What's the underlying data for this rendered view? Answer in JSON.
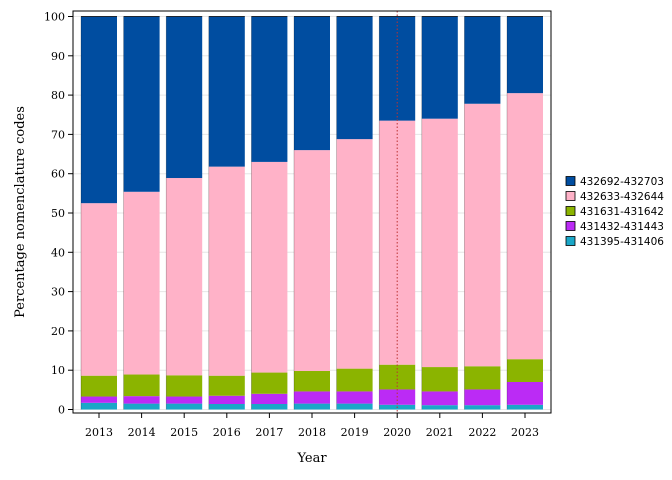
{
  "chart_data": {
    "type": "bar",
    "stacked": true,
    "title": "",
    "xlabel": "Year",
    "ylabel": "Percentage nomenclature codes",
    "ylim": [
      0,
      100
    ],
    "yticks": [
      "0",
      "10",
      "20",
      "30",
      "40",
      "50",
      "60",
      "70",
      "80",
      "90",
      "100"
    ],
    "grid": "horizontal",
    "legend_position": "right",
    "reference_line_category": "2020",
    "categories": [
      "2013",
      "2014",
      "2015",
      "2016",
      "2017",
      "2018",
      "2019",
      "2020",
      "2021",
      "2022",
      "2023"
    ],
    "series": [
      {
        "name": "431395-431406",
        "color": "#1aa7c8",
        "values": [
          1.7,
          1.5,
          1.5,
          1.4,
          1.4,
          1.5,
          1.5,
          1.2,
          1.1,
          1.1,
          1.2
        ]
      },
      {
        "name": "431432-431443",
        "color": "#bb2bf5",
        "values": [
          1.6,
          1.9,
          1.8,
          2.1,
          2.6,
          3.1,
          3.1,
          3.9,
          3.5,
          4.0,
          5.8
        ]
      },
      {
        "name": "431631-431642",
        "color": "#8bb400",
        "values": [
          5.3,
          5.5,
          5.4,
          5.1,
          5.4,
          5.2,
          5.8,
          6.3,
          6.2,
          5.9,
          5.8
        ]
      },
      {
        "name": "432633-432644",
        "color": "#ffb2c8",
        "values": [
          43.9,
          46.5,
          50.2,
          53.2,
          53.6,
          56.2,
          58.4,
          62.1,
          63.2,
          66.8,
          67.7
        ]
      },
      {
        "name": "432692-432703",
        "color": "#004da0",
        "values": [
          47.5,
          44.6,
          41.1,
          38.2,
          37.0,
          34.0,
          31.2,
          26.5,
          26.0,
          22.2,
          19.5
        ]
      }
    ]
  }
}
